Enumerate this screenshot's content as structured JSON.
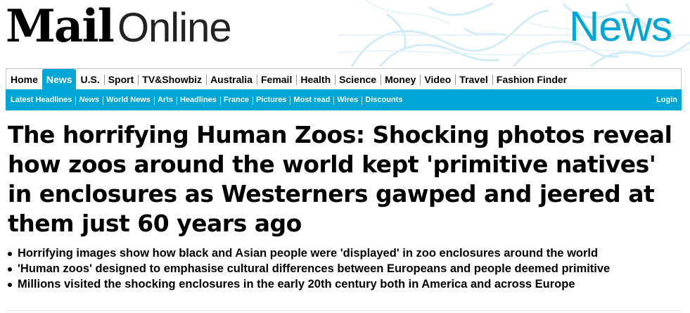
{
  "masthead": {
    "brand_mail": "Mail",
    "brand_online": "Online",
    "section_title": "News",
    "section_color": "#00a6d5"
  },
  "nav_primary": {
    "items": [
      {
        "label": "Home",
        "active": false
      },
      {
        "label": "News",
        "active": true
      },
      {
        "label": "U.S.",
        "active": false
      },
      {
        "label": "Sport",
        "active": false
      },
      {
        "label": "TV&Showbiz",
        "active": false
      },
      {
        "label": "Australia",
        "active": false
      },
      {
        "label": "Femail",
        "active": false
      },
      {
        "label": "Health",
        "active": false
      },
      {
        "label": "Science",
        "active": false
      },
      {
        "label": "Money",
        "active": false
      },
      {
        "label": "Video",
        "active": false
      },
      {
        "label": "Travel",
        "active": false
      },
      {
        "label": "Fashion Finder",
        "active": false
      }
    ]
  },
  "nav_secondary": {
    "items": [
      {
        "label": "Latest Headlines"
      },
      {
        "label": "News"
      },
      {
        "label": "World News"
      },
      {
        "label": "Arts"
      },
      {
        "label": "Headlines"
      },
      {
        "label": "France"
      },
      {
        "label": "Pictures"
      },
      {
        "label": "Most read"
      },
      {
        "label": "Wires"
      },
      {
        "label": "Discounts"
      }
    ],
    "login_label": "Login",
    "bar_color": "#00a6d5"
  },
  "article": {
    "headline": "The horrifying Human Zoos: Shocking photos reveal how zoos around the world kept 'primitive natives' in enclosures as Westerners gawped and jeered at them just 60 years ago",
    "bullets": [
      "Horrifying images show how black and Asian people were 'displayed' in zoo enclosures around the world",
      "'Human zoos' designed to emphasise cultural differences between Europeans and people deemed primitive",
      "Millions visited the shocking enclosures in the early 20th century both in America and across Europe"
    ]
  }
}
